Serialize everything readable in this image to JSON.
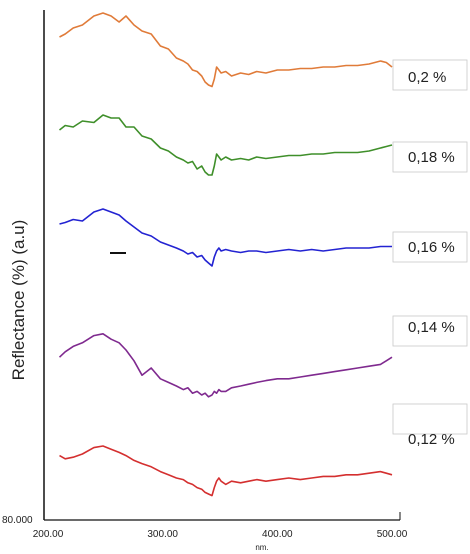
{
  "chart_data": {
    "type": "line",
    "ylabel": "Reflectance (%) (a.u)",
    "xlabel": "nm.",
    "y_corner_label": "80.000",
    "xlim": [
      200,
      500
    ],
    "x_ticks": [
      "200.00",
      "300.00",
      "400.00",
      "500.00"
    ],
    "y_scale": "arbitrary units, curves vertically offset",
    "series": [
      {
        "name": "0,2 %",
        "color": "#e07b39",
        "x": [
          210,
          215,
          222,
          230,
          240,
          248,
          255,
          262,
          268,
          275,
          282,
          290,
          298,
          305,
          312,
          318,
          322,
          326,
          330,
          334,
          337,
          340,
          343,
          345,
          347,
          349,
          351,
          355,
          360,
          368,
          375,
          382,
          390,
          400,
          410,
          420,
          430,
          440,
          450,
          460,
          470,
          480,
          490,
          495,
          500
        ],
        "y": [
          8.2,
          8.4,
          8.8,
          9.0,
          9.6,
          9.8,
          9.6,
          9.2,
          9.6,
          9.0,
          8.6,
          8.4,
          7.6,
          7.4,
          6.8,
          6.6,
          6.4,
          6.0,
          5.9,
          5.6,
          5.2,
          5.0,
          4.9,
          5.4,
          6.2,
          6.0,
          5.8,
          5.9,
          5.6,
          5.8,
          5.7,
          5.9,
          5.8,
          6.0,
          6.0,
          6.1,
          6.1,
          6.2,
          6.2,
          6.3,
          6.3,
          6.4,
          6.6,
          6.5,
          6.2
        ]
      },
      {
        "name": "0,18 %",
        "color": "#3f8f2a",
        "x": [
          210,
          215,
          222,
          230,
          240,
          248,
          255,
          262,
          268,
          275,
          282,
          290,
          298,
          305,
          312,
          318,
          322,
          326,
          330,
          334,
          337,
          340,
          343,
          345,
          347,
          349,
          351,
          355,
          360,
          368,
          375,
          382,
          390,
          400,
          410,
          420,
          430,
          440,
          450,
          460,
          470,
          480,
          490,
          495,
          500
        ],
        "y": [
          7.0,
          7.3,
          7.2,
          7.6,
          7.5,
          8.0,
          7.8,
          7.8,
          7.2,
          7.2,
          6.6,
          6.4,
          5.8,
          5.6,
          5.2,
          5.0,
          4.8,
          4.9,
          4.4,
          4.6,
          4.2,
          4.0,
          4.0,
          4.6,
          5.4,
          5.2,
          5.0,
          5.2,
          5.0,
          5.1,
          5.0,
          5.2,
          5.1,
          5.2,
          5.3,
          5.3,
          5.4,
          5.4,
          5.5,
          5.5,
          5.5,
          5.6,
          5.8,
          5.9,
          6.0
        ]
      },
      {
        "name": "0,16 %",
        "color": "#2323d2",
        "x": [
          210,
          215,
          222,
          230,
          240,
          248,
          255,
          262,
          268,
          275,
          282,
          290,
          298,
          305,
          312,
          318,
          322,
          326,
          330,
          334,
          337,
          340,
          343,
          345,
          347,
          349,
          351,
          355,
          360,
          368,
          375,
          382,
          390,
          400,
          410,
          420,
          430,
          440,
          450,
          460,
          470,
          480,
          490,
          495,
          500
        ],
        "y": [
          4.8,
          4.9,
          5.1,
          5.0,
          5.6,
          5.8,
          5.6,
          5.4,
          5.0,
          4.6,
          4.2,
          4.0,
          3.6,
          3.4,
          3.2,
          3.0,
          2.8,
          2.9,
          2.6,
          2.7,
          2.4,
          2.2,
          2.0,
          2.6,
          3.0,
          3.2,
          3.0,
          3.1,
          3.0,
          2.9,
          3.0,
          3.0,
          2.9,
          3.0,
          3.1,
          3.0,
          3.1,
          3.0,
          3.1,
          3.2,
          3.2,
          3.2,
          3.3,
          3.3,
          3.3
        ]
      },
      {
        "name": "0,14 %",
        "color": "#7f2a8f",
        "x": [
          210,
          215,
          222,
          230,
          240,
          248,
          255,
          262,
          268,
          275,
          282,
          290,
          298,
          305,
          312,
          318,
          322,
          326,
          330,
          334,
          337,
          340,
          343,
          345,
          347,
          349,
          351,
          355,
          360,
          368,
          375,
          382,
          390,
          400,
          410,
          420,
          430,
          440,
          450,
          460,
          470,
          480,
          490,
          495,
          500
        ],
        "y": [
          1.6,
          1.9,
          2.2,
          2.4,
          2.8,
          2.9,
          2.6,
          2.4,
          2.0,
          1.4,
          0.6,
          1.0,
          0.4,
          0.2,
          0.0,
          -0.2,
          -0.1,
          -0.4,
          -0.3,
          -0.5,
          -0.4,
          -0.6,
          -0.5,
          -0.3,
          -0.4,
          -0.2,
          -0.3,
          -0.3,
          -0.1,
          0.0,
          0.1,
          0.2,
          0.3,
          0.4,
          0.4,
          0.5,
          0.6,
          0.7,
          0.8,
          0.9,
          1.0,
          1.1,
          1.2,
          1.4,
          1.6
        ]
      },
      {
        "name": "0,12 %",
        "color": "#d42f2f",
        "x": [
          210,
          215,
          222,
          230,
          240,
          248,
          255,
          262,
          268,
          275,
          282,
          290,
          298,
          305,
          312,
          318,
          322,
          326,
          330,
          334,
          337,
          340,
          343,
          345,
          347,
          349,
          351,
          355,
          360,
          368,
          375,
          382,
          390,
          400,
          410,
          420,
          430,
          440,
          450,
          460,
          470,
          480,
          490,
          495,
          500
        ],
        "y": [
          -0.6,
          -0.8,
          -0.7,
          -0.5,
          -0.1,
          0.0,
          -0.2,
          -0.4,
          -0.6,
          -0.9,
          -1.1,
          -1.3,
          -1.6,
          -1.8,
          -2.0,
          -2.1,
          -2.3,
          -2.4,
          -2.6,
          -2.7,
          -2.9,
          -3.0,
          -3.1,
          -2.6,
          -2.2,
          -2.0,
          -2.2,
          -2.4,
          -2.2,
          -2.3,
          -2.2,
          -2.1,
          -2.2,
          -2.1,
          -2.0,
          -2.1,
          -2.0,
          -1.9,
          -1.9,
          -1.8,
          -1.8,
          -1.7,
          -1.6,
          -1.7,
          -1.8
        ]
      }
    ]
  }
}
